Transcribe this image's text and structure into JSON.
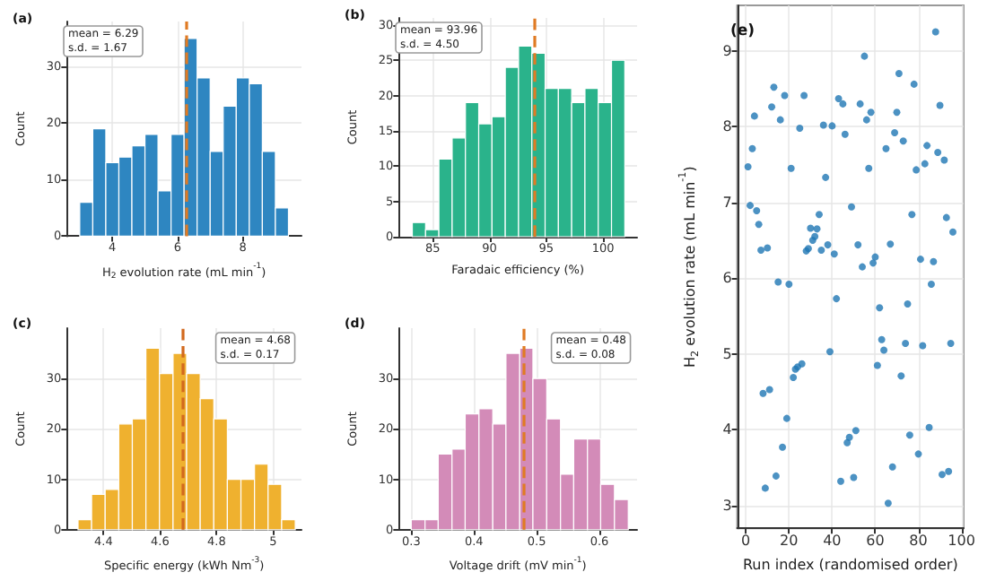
{
  "chart_data": [
    {
      "type": "histogram",
      "title": "(a)",
      "xlabel": "H$_{2}$ evolution rate (mL min$^{-1}$)",
      "ylabel": "Count",
      "color": "#2e86c1",
      "bins": [
        3.0,
        3.4,
        3.8,
        4.2,
        4.6,
        5.0,
        5.4,
        5.8,
        6.2,
        6.6,
        7.0,
        7.4,
        7.8,
        8.2,
        8.6,
        9.0,
        9.4
      ],
      "values": [
        6,
        19,
        13,
        14,
        16,
        18,
        8,
        18,
        35,
        28,
        15,
        23,
        28,
        27,
        15,
        5
      ],
      "xlim": [
        2.6,
        9.8
      ],
      "xticks": [
        4,
        6,
        8
      ],
      "ylim": [
        0,
        38
      ],
      "yticks": [
        0,
        10,
        20,
        30
      ],
      "grid": true,
      "ref_lines": [
        {
          "axis": "x",
          "value": 6.29,
          "color": "#e07b24",
          "line_style": "dashed"
        }
      ],
      "annotations": [
        "mean = 6.29",
        "s.d. = 1.67"
      ]
    },
    {
      "type": "histogram",
      "title": "(b)",
      "xlabel": "Faradaic efficiency (%)",
      "ylabel": "Count",
      "color": "#2ab38b",
      "bins": [
        83.2,
        84.37,
        85.54,
        86.71,
        87.88,
        89.05,
        90.22,
        91.39,
        92.56,
        93.73,
        94.9,
        96.07,
        97.24,
        98.41,
        99.58,
        100.75,
        101.92
      ],
      "values": [
        2,
        1,
        11,
        14,
        19,
        16,
        17,
        24,
        27,
        26,
        21,
        21,
        19,
        21,
        19,
        25
      ],
      "xlim": [
        82,
        103
      ],
      "xticks": [
        85,
        90,
        95,
        100
      ],
      "ylim": [
        0,
        31
      ],
      "yticks": [
        0,
        5,
        10,
        15,
        20,
        25,
        30
      ],
      "grid": true,
      "ref_lines": [
        {
          "axis": "x",
          "value": 93.96,
          "color": "#e07b24",
          "line_style": "dashed"
        }
      ],
      "annotations": [
        "mean = 93.96",
        "s.d. = 4.50"
      ]
    },
    {
      "type": "histogram",
      "title": "(c)",
      "xlabel": "Specific energy (kWh Nm$^{-3}$)",
      "ylabel": "Count",
      "color": "#efb12f",
      "bins": [
        4.31,
        4.358,
        4.406,
        4.454,
        4.502,
        4.55,
        4.598,
        4.646,
        4.694,
        4.742,
        4.79,
        4.838,
        4.886,
        4.934,
        4.982,
        5.03,
        5.078
      ],
      "values": [
        2,
        7,
        8,
        21,
        22,
        36,
        31,
        35,
        31,
        26,
        22,
        10,
        10,
        13,
        9,
        2
      ],
      "xlim": [
        4.27,
        5.1
      ],
      "xticks": [
        4.4,
        4.6,
        4.8,
        5.0
      ],
      "ylim": [
        0,
        40
      ],
      "yticks": [
        0,
        10,
        20,
        30
      ],
      "grid": true,
      "ref_lines": [
        {
          "axis": "x",
          "value": 4.68,
          "color": "#d2691e",
          "line_style": "dashed"
        }
      ],
      "annotations": [
        "mean = 4.68",
        "s.d. = 0.17"
      ]
    },
    {
      "type": "histogram",
      "title": "(d)",
      "xlabel": "Voltage drift (mV min$^{-1}$)",
      "ylabel": "Count",
      "color": "#d38bb8",
      "bins": [
        0.3,
        0.322,
        0.343,
        0.365,
        0.386,
        0.408,
        0.43,
        0.451,
        0.473,
        0.494,
        0.516,
        0.538,
        0.559,
        0.581,
        0.602,
        0.624,
        0.646
      ],
      "values": [
        2,
        2,
        15,
        16,
        23,
        24,
        21,
        35,
        36,
        30,
        22,
        11,
        18,
        18,
        9,
        6
      ],
      "xlim": [
        0.28,
        0.66
      ],
      "xticks": [
        0.3,
        0.4,
        0.5,
        0.6
      ],
      "ylim": [
        0,
        40
      ],
      "yticks": [
        0,
        10,
        20,
        30
      ],
      "grid": true,
      "ref_lines": [
        {
          "axis": "x",
          "value": 0.48,
          "color": "#e07b24",
          "line_style": "dashed"
        }
      ],
      "annotations": [
        "mean = 0.48",
        "s.d. = 0.08"
      ]
    },
    {
      "type": "scatter",
      "title": "(e)",
      "xlabel": "Run index (randomised order)",
      "ylabel": "H$_{2}$ evolution rate (mL min$^{-1}$)",
      "color": "#1f77b4",
      "marker": "circle",
      "x": [
        1,
        2,
        3,
        4,
        5,
        6,
        7,
        8,
        9,
        10,
        11,
        12,
        13,
        14,
        15,
        16,
        17,
        18,
        19,
        20,
        21,
        22,
        23,
        24,
        25,
        26,
        27,
        28,
        29,
        30,
        31,
        32,
        33,
        34,
        35,
        36,
        37,
        38,
        39,
        40,
        41,
        42,
        43,
        44,
        45,
        46,
        47,
        48,
        49,
        50,
        51,
        52,
        53,
        54,
        55,
        56,
        57,
        58,
        59,
        60,
        61,
        62,
        63,
        64,
        65,
        66,
        67,
        68,
        69,
        70,
        71,
        72,
        73,
        74,
        75,
        76,
        77,
        78,
        79,
        80,
        81,
        82,
        83,
        84,
        85,
        86,
        87,
        88,
        89,
        90,
        91,
        92,
        93,
        94,
        95,
        96
      ],
      "values": [
        7.47,
        6.96,
        7.71,
        8.14,
        6.89,
        6.71,
        6.37,
        4.48,
        3.23,
        6.4,
        4.53,
        8.26,
        8.52,
        3.39,
        5.95,
        8.09,
        3.77,
        8.41,
        4.15,
        5.92,
        7.45,
        4.69,
        4.8,
        4.83,
        7.98,
        4.87,
        8.41,
        6.36,
        6.39,
        6.66,
        6.5,
        6.55,
        6.65,
        6.84,
        6.37,
        8.02,
        7.33,
        6.44,
        5.03,
        8.01,
        6.32,
        5.73,
        8.37,
        3.32,
        8.3,
        7.9,
        3.83,
        3.9,
        6.94,
        3.37,
        3.99,
        6.44,
        8.3,
        6.15,
        8.93,
        8.09,
        7.45,
        8.19,
        6.2,
        6.28,
        4.85,
        5.61,
        5.19,
        5.05,
        7.71,
        3.03,
        6.45,
        3.51,
        7.92,
        8.19,
        8.7,
        4.71,
        7.81,
        5.14,
        5.66,
        3.93,
        6.84,
        8.56,
        7.43,
        3.68,
        6.25,
        5.11,
        7.51,
        7.75,
        4.03,
        5.92,
        6.22,
        9.25,
        7.66,
        8.28,
        3.41,
        7.56,
        6.8,
        3.45,
        5.14,
        6.61
      ],
      "xlim": [
        -4,
        101
      ],
      "xticks": [
        0,
        20,
        40,
        60,
        80,
        100
      ],
      "ylim": [
        2.7,
        9.6
      ],
      "yticks": [
        3,
        4,
        5,
        6,
        7,
        8,
        9
      ],
      "grid": true
    }
  ]
}
